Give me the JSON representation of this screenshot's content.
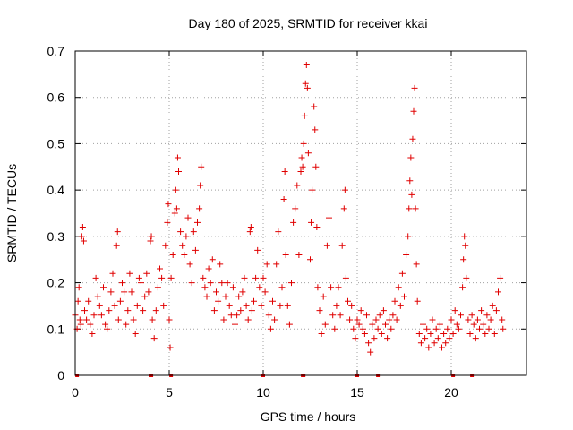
{
  "chart_data": {
    "type": "scatter",
    "title": "Day 180 of 2025, SRMTID for receiver kkai",
    "xlabel": "GPS time / hours",
    "ylabel": "SRMTID / TECUs",
    "xlim": [
      0,
      24
    ],
    "ylim": [
      0,
      0.7
    ],
    "x_ticks": [
      0,
      5,
      10,
      15,
      20
    ],
    "x_tick_labels": [
      "0",
      "5",
      "10",
      "15",
      "20"
    ],
    "y_ticks": [
      0,
      0.1,
      0.2,
      0.3,
      0.4,
      0.5,
      0.6,
      0.7
    ],
    "y_tick_labels": [
      "0",
      "0.1",
      "0.2",
      "0.3",
      "0.4",
      "0.5",
      "0.6",
      "0.7"
    ],
    "grid": true,
    "marker": "plus",
    "color": "#e00000",
    "series": [
      {
        "name": "SRMTID",
        "points": [
          [
            0.0,
            0.13
          ],
          [
            0.1,
            0.1
          ],
          [
            0.15,
            0.16
          ],
          [
            0.2,
            0.19
          ],
          [
            0.25,
            0.12
          ],
          [
            0.3,
            0.11
          ],
          [
            0.35,
            0.3
          ],
          [
            0.4,
            0.32
          ],
          [
            0.45,
            0.29
          ],
          [
            0.5,
            0.14
          ],
          [
            0.6,
            0.12
          ],
          [
            0.7,
            0.16
          ],
          [
            0.8,
            0.11
          ],
          [
            0.9,
            0.09
          ],
          [
            1.0,
            0.13
          ],
          [
            1.1,
            0.21
          ],
          [
            1.2,
            0.17
          ],
          [
            1.3,
            0.15
          ],
          [
            1.4,
            0.13
          ],
          [
            1.5,
            0.19
          ],
          [
            1.6,
            0.11
          ],
          [
            1.7,
            0.1
          ],
          [
            1.8,
            0.14
          ],
          [
            1.9,
            0.18
          ],
          [
            2.0,
            0.22
          ],
          [
            2.1,
            0.15
          ],
          [
            2.2,
            0.28
          ],
          [
            2.25,
            0.31
          ],
          [
            2.3,
            0.12
          ],
          [
            2.4,
            0.16
          ],
          [
            2.5,
            0.2
          ],
          [
            2.6,
            0.18
          ],
          [
            2.7,
            0.11
          ],
          [
            2.8,
            0.14
          ],
          [
            2.9,
            0.22
          ],
          [
            3.0,
            0.18
          ],
          [
            3.1,
            0.12
          ],
          [
            3.2,
            0.09
          ],
          [
            3.3,
            0.15
          ],
          [
            3.4,
            0.21
          ],
          [
            3.5,
            0.2
          ],
          [
            3.6,
            0.14
          ],
          [
            3.7,
            0.17
          ],
          [
            3.8,
            0.22
          ],
          [
            3.9,
            0.18
          ],
          [
            4.0,
            0.29
          ],
          [
            4.05,
            0.3
          ],
          [
            4.1,
            0.12
          ],
          [
            4.2,
            0.08
          ],
          [
            4.3,
            0.14
          ],
          [
            4.4,
            0.19
          ],
          [
            4.5,
            0.23
          ],
          [
            4.6,
            0.21
          ],
          [
            4.7,
            0.15
          ],
          [
            4.8,
            0.28
          ],
          [
            4.9,
            0.33
          ],
          [
            4.95,
            0.37
          ],
          [
            5.0,
            0.12
          ],
          [
            5.05,
            0.06
          ],
          [
            5.1,
            0.21
          ],
          [
            5.2,
            0.26
          ],
          [
            5.3,
            0.35
          ],
          [
            5.35,
            0.4
          ],
          [
            5.4,
            0.36
          ],
          [
            5.45,
            0.47
          ],
          [
            5.5,
            0.44
          ],
          [
            5.6,
            0.31
          ],
          [
            5.7,
            0.28
          ],
          [
            5.8,
            0.26
          ],
          [
            5.9,
            0.3
          ],
          [
            6.0,
            0.34
          ],
          [
            6.1,
            0.24
          ],
          [
            6.2,
            0.2
          ],
          [
            6.3,
            0.31
          ],
          [
            6.4,
            0.27
          ],
          [
            6.5,
            0.33
          ],
          [
            6.6,
            0.36
          ],
          [
            6.65,
            0.41
          ],
          [
            6.7,
            0.45
          ],
          [
            6.8,
            0.21
          ],
          [
            6.9,
            0.19
          ],
          [
            7.0,
            0.17
          ],
          [
            7.1,
            0.23
          ],
          [
            7.2,
            0.2
          ],
          [
            7.3,
            0.25
          ],
          [
            7.4,
            0.14
          ],
          [
            7.5,
            0.18
          ],
          [
            7.6,
            0.16
          ],
          [
            7.7,
            0.24
          ],
          [
            7.8,
            0.2
          ],
          [
            7.9,
            0.12
          ],
          [
            8.0,
            0.17
          ],
          [
            8.1,
            0.2
          ],
          [
            8.2,
            0.15
          ],
          [
            8.3,
            0.13
          ],
          [
            8.4,
            0.19
          ],
          [
            8.5,
            0.11
          ],
          [
            8.6,
            0.13
          ],
          [
            8.7,
            0.17
          ],
          [
            8.8,
            0.14
          ],
          [
            8.9,
            0.18
          ],
          [
            9.0,
            0.21
          ],
          [
            9.1,
            0.15
          ],
          [
            9.2,
            0.12
          ],
          [
            9.3,
            0.31
          ],
          [
            9.35,
            0.32
          ],
          [
            9.4,
            0.14
          ],
          [
            9.5,
            0.16
          ],
          [
            9.6,
            0.21
          ],
          [
            9.7,
            0.27
          ],
          [
            9.8,
            0.19
          ],
          [
            9.9,
            0.15
          ],
          [
            10.0,
            0.21
          ],
          [
            10.1,
            0.18
          ],
          [
            10.2,
            0.24
          ],
          [
            10.3,
            0.13
          ],
          [
            10.4,
            0.1
          ],
          [
            10.5,
            0.16
          ],
          [
            10.6,
            0.12
          ],
          [
            10.7,
            0.24
          ],
          [
            10.8,
            0.31
          ],
          [
            10.9,
            0.15
          ],
          [
            11.0,
            0.19
          ],
          [
            11.1,
            0.38
          ],
          [
            11.15,
            0.44
          ],
          [
            11.2,
            0.26
          ],
          [
            11.3,
            0.15
          ],
          [
            11.4,
            0.11
          ],
          [
            11.5,
            0.2
          ],
          [
            11.6,
            0.33
          ],
          [
            11.7,
            0.36
          ],
          [
            11.8,
            0.41
          ],
          [
            11.9,
            0.26
          ],
          [
            12.0,
            0.44
          ],
          [
            12.05,
            0.47
          ],
          [
            12.1,
            0.45
          ],
          [
            12.15,
            0.5
          ],
          [
            12.2,
            0.56
          ],
          [
            12.25,
            0.63
          ],
          [
            12.3,
            0.67
          ],
          [
            12.35,
            0.62
          ],
          [
            12.4,
            0.48
          ],
          [
            12.5,
            0.25
          ],
          [
            12.55,
            0.33
          ],
          [
            12.6,
            0.4
          ],
          [
            12.7,
            0.58
          ],
          [
            12.75,
            0.53
          ],
          [
            12.8,
            0.45
          ],
          [
            12.85,
            0.32
          ],
          [
            12.9,
            0.19
          ],
          [
            13.0,
            0.14
          ],
          [
            13.1,
            0.09
          ],
          [
            13.2,
            0.17
          ],
          [
            13.3,
            0.11
          ],
          [
            13.4,
            0.28
          ],
          [
            13.5,
            0.34
          ],
          [
            13.6,
            0.19
          ],
          [
            13.7,
            0.13
          ],
          [
            13.8,
            0.1
          ],
          [
            13.9,
            0.15
          ],
          [
            14.0,
            0.19
          ],
          [
            14.1,
            0.13
          ],
          [
            14.2,
            0.28
          ],
          [
            14.3,
            0.36
          ],
          [
            14.35,
            0.4
          ],
          [
            14.4,
            0.21
          ],
          [
            14.5,
            0.16
          ],
          [
            14.6,
            0.12
          ],
          [
            14.7,
            0.15
          ],
          [
            14.8,
            0.1
          ],
          [
            14.9,
            0.08
          ],
          [
            15.0,
            0.12
          ],
          [
            15.1,
            0.11
          ],
          [
            15.2,
            0.14
          ],
          [
            15.3,
            0.1
          ],
          [
            15.4,
            0.09
          ],
          [
            15.5,
            0.13
          ],
          [
            15.6,
            0.07
          ],
          [
            15.7,
            0.05
          ],
          [
            15.8,
            0.11
          ],
          [
            15.9,
            0.08
          ],
          [
            16.0,
            0.12
          ],
          [
            16.1,
            0.1
          ],
          [
            16.2,
            0.13
          ],
          [
            16.3,
            0.09
          ],
          [
            16.4,
            0.14
          ],
          [
            16.5,
            0.11
          ],
          [
            16.6,
            0.08
          ],
          [
            16.7,
            0.12
          ],
          [
            16.8,
            0.1
          ],
          [
            16.9,
            0.13
          ],
          [
            17.0,
            0.16
          ],
          [
            17.1,
            0.12
          ],
          [
            17.2,
            0.19
          ],
          [
            17.3,
            0.15
          ],
          [
            17.4,
            0.22
          ],
          [
            17.5,
            0.17
          ],
          [
            17.6,
            0.26
          ],
          [
            17.7,
            0.3
          ],
          [
            17.75,
            0.36
          ],
          [
            17.8,
            0.42
          ],
          [
            17.85,
            0.47
          ],
          [
            17.9,
            0.39
          ],
          [
            17.95,
            0.51
          ],
          [
            18.0,
            0.57
          ],
          [
            18.05,
            0.62
          ],
          [
            18.1,
            0.36
          ],
          [
            18.15,
            0.24
          ],
          [
            18.2,
            0.16
          ],
          [
            18.3,
            0.09
          ],
          [
            18.4,
            0.07
          ],
          [
            18.5,
            0.11
          ],
          [
            18.6,
            0.08
          ],
          [
            18.7,
            0.1
          ],
          [
            18.8,
            0.06
          ],
          [
            18.9,
            0.09
          ],
          [
            19.0,
            0.12
          ],
          [
            19.1,
            0.07
          ],
          [
            19.2,
            0.1
          ],
          [
            19.3,
            0.08
          ],
          [
            19.4,
            0.11
          ],
          [
            19.5,
            0.06
          ],
          [
            19.6,
            0.09
          ],
          [
            19.7,
            0.07
          ],
          [
            19.8,
            0.1
          ],
          [
            19.9,
            0.08
          ],
          [
            20.0,
            0.12
          ],
          [
            20.1,
            0.09
          ],
          [
            20.2,
            0.14
          ],
          [
            20.3,
            0.11
          ],
          [
            20.4,
            0.1
          ],
          [
            20.5,
            0.13
          ],
          [
            20.6,
            0.19
          ],
          [
            20.65,
            0.25
          ],
          [
            20.7,
            0.3
          ],
          [
            20.75,
            0.28
          ],
          [
            20.8,
            0.21
          ],
          [
            20.9,
            0.12
          ],
          [
            21.0,
            0.09
          ],
          [
            21.1,
            0.13
          ],
          [
            21.2,
            0.11
          ],
          [
            21.3,
            0.08
          ],
          [
            21.4,
            0.12
          ],
          [
            21.5,
            0.1
          ],
          [
            21.6,
            0.14
          ],
          [
            21.7,
            0.11
          ],
          [
            21.8,
            0.09
          ],
          [
            21.9,
            0.13
          ],
          [
            22.0,
            0.1
          ],
          [
            22.1,
            0.12
          ],
          [
            22.2,
            0.15
          ],
          [
            22.3,
            0.09
          ],
          [
            22.4,
            0.14
          ],
          [
            22.5,
            0.18
          ],
          [
            22.6,
            0.21
          ],
          [
            22.7,
            0.12
          ],
          [
            22.75,
            0.1
          ],
          [
            0.1,
            0.0
          ],
          [
            4.0,
            0.0
          ],
          [
            4.05,
            0.0
          ],
          [
            5.1,
            0.0
          ],
          [
            10.0,
            0.0
          ],
          [
            12.1,
            0.0
          ],
          [
            12.15,
            0.0
          ],
          [
            15.0,
            0.0
          ],
          [
            16.1,
            0.0
          ],
          [
            20.1,
            0.0
          ],
          [
            21.1,
            0.0
          ]
        ]
      }
    ]
  }
}
